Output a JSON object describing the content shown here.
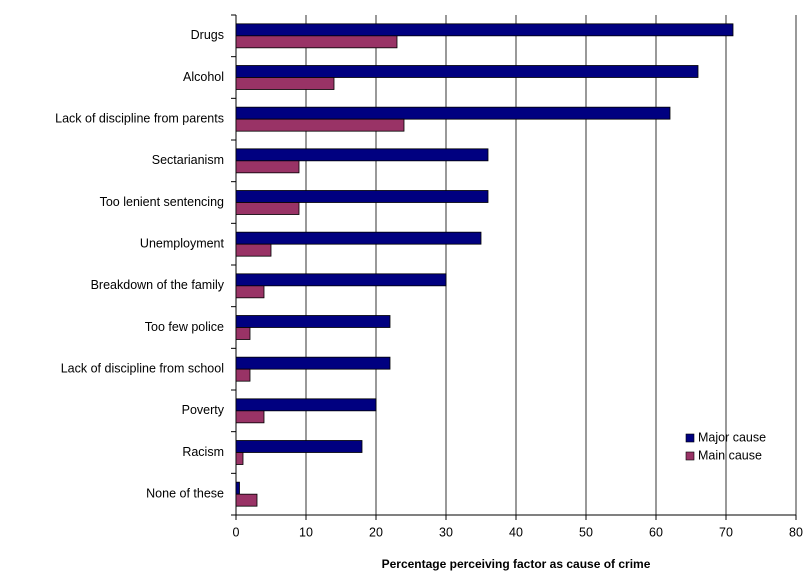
{
  "chart_data": {
    "type": "hbar",
    "x_label": "Percentage perceiving factor as cause of crime",
    "categories": [
      "Drugs",
      "Alcohol",
      "Lack of discipline from parents",
      "Sectarianism",
      "Too lenient sentencing",
      "Unemployment",
      "Breakdown of the family",
      "Too few police",
      "Lack of discipline from school",
      "Poverty",
      "Racism",
      "None of these"
    ],
    "series": [
      {
        "name": "Major cause",
        "color": "#000080",
        "values": [
          71,
          66,
          62,
          36,
          36,
          35,
          30,
          22,
          22,
          20,
          18,
          0.5
        ]
      },
      {
        "name": "Main cause",
        "color": "#993366",
        "values": [
          23,
          14,
          24,
          9,
          9,
          5,
          4,
          2,
          2,
          4,
          1,
          3
        ]
      }
    ],
    "xlim": [
      0,
      80
    ],
    "xticks": [
      0,
      10,
      20,
      30,
      40,
      50,
      60,
      70,
      80
    ],
    "grid": true,
    "legend": "lower right"
  }
}
